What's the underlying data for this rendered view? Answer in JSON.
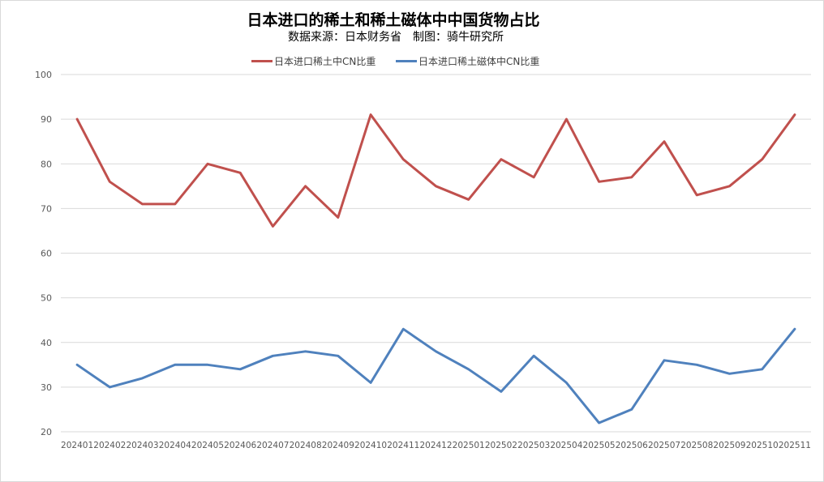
{
  "chart_data": {
    "type": "line",
    "title": "日本进口的稀土和稀土磁体中中国货物占比",
    "subtitle": "数据来源：日本财务省　制图：骑牛研究所",
    "xlabel": "",
    "ylabel": "",
    "ylim": [
      20,
      100
    ],
    "yticks": [
      "100",
      "90",
      "80",
      "70",
      "60",
      "50",
      "40",
      "30",
      "20"
    ],
    "grid": true,
    "legend": "top-center",
    "categories": [
      "202401",
      "202402",
      "202403",
      "202404",
      "202405",
      "202406",
      "202407",
      "202408",
      "202409",
      "202410",
      "202411",
      "202412",
      "202501",
      "202502",
      "202503",
      "202504",
      "202505",
      "202506",
      "202507",
      "202508",
      "202509",
      "202510",
      "202511"
    ],
    "series": [
      {
        "name": "日本进口稀土中CN比重",
        "color": "#c0504d",
        "values": [
          90,
          76,
          71,
          71,
          80,
          78,
          66,
          75,
          68,
          91,
          81,
          75,
          72,
          81,
          77,
          90,
          76,
          77,
          85,
          73,
          75,
          81,
          91
        ]
      },
      {
        "name": "日本进口稀土磁体中CN比重",
        "color": "#4f81bd",
        "values": [
          35,
          30,
          32,
          35,
          35,
          34,
          37,
          38,
          37,
          31,
          43,
          38,
          34,
          29,
          37,
          31,
          22,
          25,
          36,
          35,
          33,
          34,
          43
        ]
      }
    ]
  }
}
